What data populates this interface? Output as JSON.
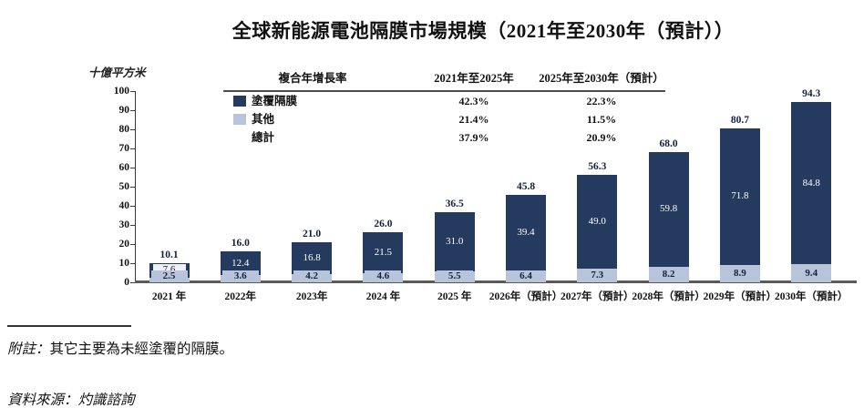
{
  "title": "全球新能源電池隔膜市場規模（2021年至2030年（預計））",
  "chart_data": {
    "type": "bar",
    "stacked": true,
    "unit_label": "十億平方米",
    "categories": [
      "2021 年",
      "2022年",
      "2023年",
      "2024 年",
      "2025 年",
      "2026年（預計）",
      "2027年（預計）",
      "2028年（預計）",
      "2029年（預計）",
      "2030年（預計）"
    ],
    "series": [
      {
        "name": "塗覆隔膜",
        "color": "#243A5E",
        "values": [
          7.6,
          12.4,
          16.8,
          21.5,
          31.0,
          39.4,
          49.0,
          59.8,
          71.8,
          84.8
        ]
      },
      {
        "name": "其他",
        "color": "#B7C4DA",
        "values": [
          2.5,
          3.6,
          4.2,
          4.6,
          5.5,
          6.4,
          7.3,
          8.2,
          8.9,
          9.4
        ]
      }
    ],
    "totals": [
      10.1,
      16.0,
      21.0,
      26.0,
      36.5,
      45.8,
      56.3,
      68.0,
      80.7,
      94.3
    ],
    "ylim": [
      0,
      100
    ],
    "ytick_step": 10,
    "grid": false,
    "legend_position": "top-left-inside"
  },
  "cagr_table": {
    "title": "複合年增長率",
    "col_headers": [
      "2021年至2025年",
      "2025年至2030年（預計）"
    ],
    "rows": [
      {
        "label": "塗覆隔膜",
        "values": [
          "42.3%",
          "22.3%"
        ]
      },
      {
        "label": "其他",
        "values": [
          "21.4%",
          "11.5%"
        ]
      },
      {
        "label": "總計",
        "values": [
          "37.9%",
          "20.9%"
        ]
      }
    ]
  },
  "notes": {
    "note_prefix": "附註：",
    "note_body": "其它主要為未經塗覆的隔膜。",
    "source": "資料來源：灼識諮詢"
  },
  "colors": {
    "coated": "#243A5E",
    "other": "#B7C4DA",
    "axis": "#3a3a3a",
    "baseline": "#5a5a5a"
  }
}
